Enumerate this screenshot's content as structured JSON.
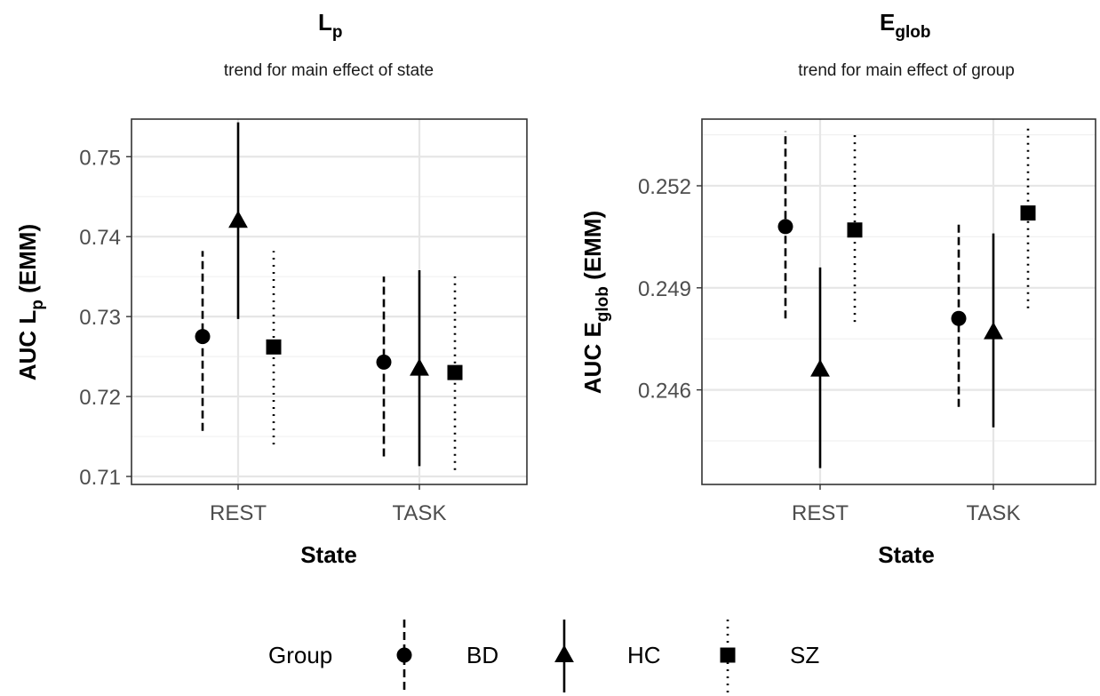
{
  "chart_data": [
    {
      "type": "errorbar",
      "title": "L",
      "title_subscript": "p",
      "subtitle": "trend for main effect of state",
      "xlabel": "State",
      "ylabel_prefix": "AUC L",
      "ylabel_subscript": "p",
      "ylabel_suffix": " (EMM)",
      "categories": [
        "REST",
        "TASK"
      ],
      "ylim": [
        0.709,
        0.7547
      ],
      "yticks": [
        0.71,
        0.72,
        0.73,
        0.74,
        0.75
      ],
      "ytick_labels": [
        "0.71",
        "0.72",
        "0.73",
        "0.74",
        "0.75"
      ],
      "grid": true,
      "series": [
        {
          "name": "BD",
          "values": [
            0.7275,
            0.7243
          ],
          "lower": [
            0.7157,
            0.7125
          ],
          "upper": [
            0.7382,
            0.735
          ]
        },
        {
          "name": "HC",
          "values": [
            0.742,
            0.7235
          ],
          "lower": [
            0.7297,
            0.7113
          ],
          "upper": [
            0.7543,
            0.7358
          ]
        },
        {
          "name": "SZ",
          "values": [
            0.7262,
            0.723
          ],
          "lower": [
            0.714,
            0.7108
          ],
          "upper": [
            0.7382,
            0.735
          ]
        }
      ]
    },
    {
      "type": "errorbar",
      "title": "E",
      "title_subscript": "glob",
      "subtitle": "trend for main effect of group",
      "xlabel": "State",
      "ylabel_prefix": "AUC E",
      "ylabel_subscript": "glob",
      "ylabel_suffix": " (EMM)",
      "categories": [
        "REST",
        "TASK"
      ],
      "ylim": [
        0.24322,
        0.25396
      ],
      "yticks": [
        0.246,
        0.249,
        0.252
      ],
      "ytick_labels": [
        "0.246",
        "0.249",
        "0.252"
      ],
      "grid": true,
      "series": [
        {
          "name": "BD",
          "values": [
            0.2508,
            0.2481
          ],
          "lower": [
            0.2481,
            0.2455
          ],
          "upper": [
            0.2536,
            0.2509
          ]
        },
        {
          "name": "HC",
          "values": [
            0.2466,
            0.2477
          ],
          "lower": [
            0.2437,
            0.2449
          ],
          "upper": [
            0.2496,
            0.2506
          ]
        },
        {
          "name": "SZ",
          "values": [
            0.2507,
            0.2512
          ],
          "lower": [
            0.248,
            0.2484
          ],
          "upper": [
            0.2535,
            0.2538
          ]
        }
      ]
    }
  ],
  "legend": {
    "title": "Group",
    "position": "bottom",
    "items": [
      {
        "label": "BD",
        "shape": "circle",
        "linetype": "dashed"
      },
      {
        "label": "HC",
        "shape": "triangle",
        "linetype": "solid"
      },
      {
        "label": "SZ",
        "shape": "square",
        "linetype": "dotted"
      }
    ]
  },
  "colors": {
    "marker": "#000000",
    "panel_border": "#333333",
    "grid_major": "#e6e6e6",
    "grid_minor": "#f0f0f0",
    "tick_text": "#4d4d4d"
  }
}
